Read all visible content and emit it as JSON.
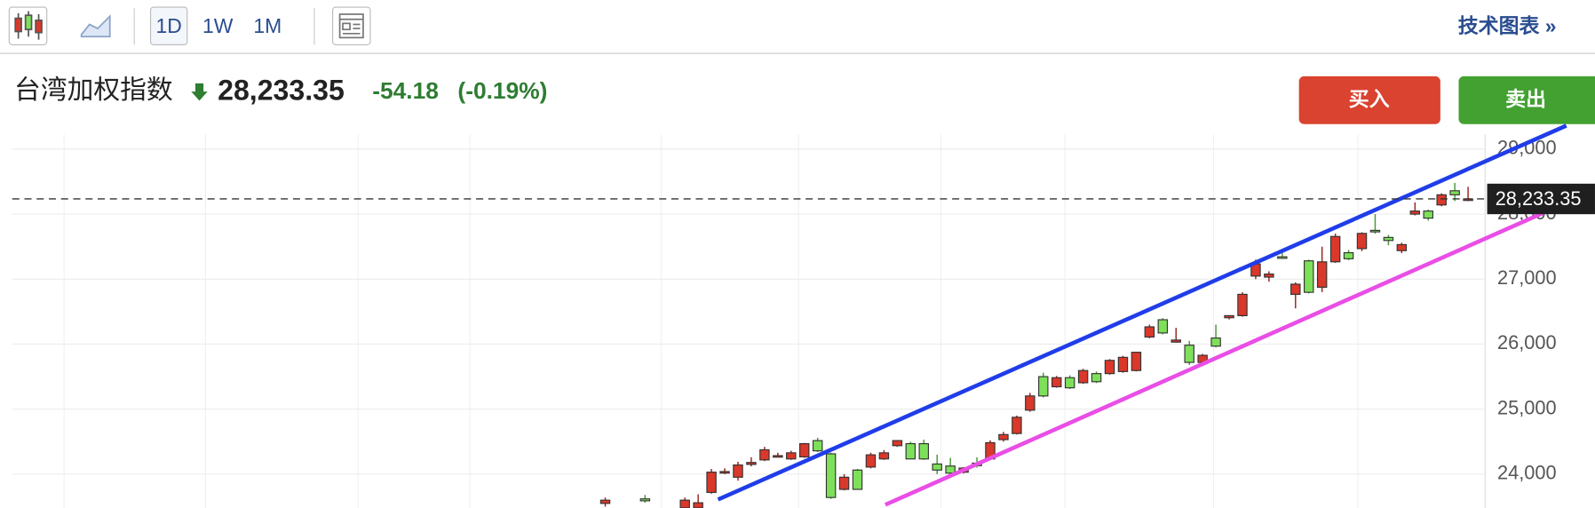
{
  "toolbar": {
    "ranges": [
      "1D",
      "1W",
      "1M"
    ],
    "link": "技术图表 »"
  },
  "quote": {
    "name": "台湾加权指数",
    "change": "-54.18",
    "change_percent": "(-0.19%)"
  },
  "actions": {
    "buy": "买入",
    "sell": "卖出"
  },
  "chart_data": {
    "type": "candlestick",
    "up_color": "#d9382a",
    "down_color": "#7ee05a",
    "open": [
      23550,
      null,
      null,
      23620,
      null,
      null,
      23480,
      23480,
      23719,
      24020,
      23953,
      24150,
      24219,
      24270,
      24234,
      24266,
      24516,
      24313,
      23766,
      24063,
      24109,
      24234,
      24438,
      24469,
      24469,
      24156,
      24125,
      24030,
      24170,
      24234,
      24531,
      24625,
      24984,
      25500,
      25344,
      25484,
      25406,
      25547,
      25547,
      25578,
      25594,
      26109,
      26375,
      26031,
      25984,
      25719,
      26094,
      26406,
      26438,
      27047,
      27031,
      27344,
      26766,
      27281,
      26875,
      27266,
      27406,
      27469,
      27750,
      27641,
      27438,
      28000,
      28047,
      28141,
      28359,
      28220
    ],
    "high": [
      23640,
      null,
      null,
      23680,
      null,
      null,
      23640,
      23690,
      24080,
      24090,
      24190,
      24260,
      24420,
      24330,
      24360,
      24480,
      24560,
      24330,
      24000,
      24080,
      24330,
      24370,
      24520,
      24500,
      24530,
      24300,
      24250,
      24110,
      24260,
      24520,
      24650,
      24900,
      25250,
      25560,
      25510,
      25520,
      25620,
      25580,
      25770,
      25820,
      25880,
      26300,
      26400,
      26250,
      26050,
      25850,
      26300,
      26440,
      26800,
      27300,
      27120,
      27420,
      26950,
      27300,
      27500,
      27700,
      27450,
      27720,
      28000,
      27680,
      27560,
      28180,
      28070,
      28320,
      28480,
      28420
    ],
    "low": [
      23500,
      null,
      null,
      23560,
      null,
      null,
      23470,
      23470,
      23700,
      24000,
      23900,
      24120,
      24200,
      24260,
      24220,
      24250,
      24340,
      23620,
      23750,
      23760,
      24090,
      24220,
      24420,
      24230,
      24220,
      24000,
      23990,
      24010,
      24100,
      24220,
      24500,
      24610,
      24960,
      25180,
      25330,
      25310,
      25390,
      25400,
      25530,
      25560,
      25580,
      26090,
      26150,
      26020,
      25680,
      25700,
      25950,
      26380,
      26420,
      27000,
      26960,
      27310,
      26550,
      26780,
      26800,
      27250,
      27290,
      27430,
      27700,
      27520,
      27400,
      27980,
      27900,
      28120,
      28200,
      28200
    ],
    "close": [
      23600,
      null,
      null,
      23590,
      null,
      null,
      23600,
      23560,
      24031,
      24040,
      24141,
      24180,
      24375,
      24285,
      24328,
      24469,
      24359,
      23641,
      23953,
      23766,
      24297,
      24328,
      24516,
      24234,
      24234,
      24063,
      24016,
      24094,
      24130,
      24484,
      24609,
      24875,
      25203,
      25203,
      25484,
      25328,
      25594,
      25422,
      25750,
      25797,
      25875,
      26266,
      26172,
      26063,
      25719,
      25828,
      25969,
      26438,
      26766,
      27234,
      27078,
      27320,
      26922,
      26797,
      27266,
      27656,
      27313,
      27703,
      27734,
      27594,
      27531,
      28047,
      27938,
      28297,
      28297,
      28233.35
    ],
    "last_price": {
      "value": 28233.35,
      "label": "28,233.35"
    },
    "trendlines": [
      {
        "color": "#1f3de8",
        "x": [
          8.5,
          72.4
        ],
        "values": [
          23610,
          29360
        ]
      },
      {
        "color": "#e94ee6",
        "x": [
          21.1,
          72.0
        ],
        "values": [
          23530,
          28140
        ]
      }
    ],
    "ylim": [
      23470,
      29400
    ],
    "yticks": [
      {
        "value": 24000,
        "label": "24,000"
      },
      {
        "value": 25000,
        "label": "25,000"
      },
      {
        "value": 26000,
        "label": "26,000"
      },
      {
        "value": 27000,
        "label": "27,000"
      },
      {
        "value": 28000,
        "label": "28,000"
      },
      {
        "value": 29000,
        "label": "29,000"
      }
    ],
    "grid": true
  }
}
